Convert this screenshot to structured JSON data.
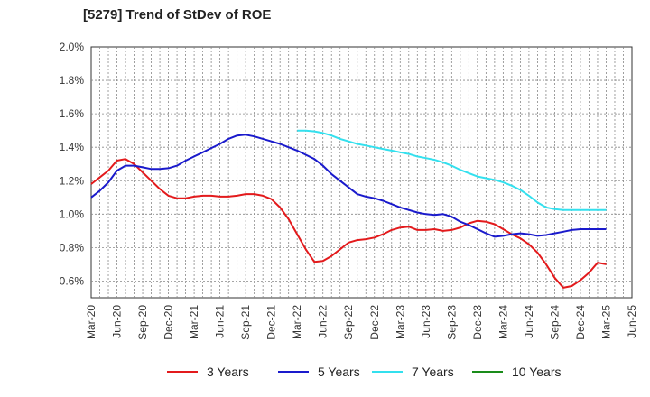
{
  "chart_data": {
    "type": "line",
    "title": "[5279]  Trend of StDev of ROE",
    "xlabel": "",
    "ylabel": "",
    "ylim": [
      0.5,
      2.0
    ],
    "y_ticks": [
      0.6,
      0.8,
      1.0,
      1.2,
      1.4,
      1.6,
      1.8,
      2.0
    ],
    "y_tick_labels": [
      "0.6%",
      "0.8%",
      "1.0%",
      "1.2%",
      "1.4%",
      "1.6%",
      "1.8%",
      "2.0%"
    ],
    "x_tick_labels": [
      "Mar-20",
      "Jun-20",
      "Sep-20",
      "Dec-20",
      "Mar-21",
      "Jun-21",
      "Sep-21",
      "Dec-21",
      "Mar-22",
      "Jun-22",
      "Sep-22",
      "Dec-22",
      "Mar-23",
      "Jun-23",
      "Sep-23",
      "Dec-23",
      "Mar-24",
      "Jun-24",
      "Sep-24",
      "Dec-24",
      "Mar-25",
      "Jun-25"
    ],
    "grid": true,
    "legend_position": "bottom",
    "series": [
      {
        "name": "3 Years",
        "color": "#e31a1c",
        "x": [
          0,
          1,
          2,
          3,
          4,
          5,
          6,
          7,
          8,
          9,
          10,
          11,
          12,
          13,
          14,
          15,
          16,
          17,
          18,
          19,
          20,
          21,
          22,
          23,
          24,
          25,
          26,
          27,
          28,
          29,
          30,
          31,
          32,
          33,
          34,
          35,
          36,
          37,
          38,
          39,
          40,
          41,
          42,
          43,
          44,
          45,
          46,
          47,
          48,
          49,
          50,
          51,
          52,
          53,
          54,
          55,
          56,
          57,
          58,
          59,
          60
        ],
        "values": [
          1.18,
          1.22,
          1.26,
          1.32,
          1.33,
          1.3,
          1.25,
          1.2,
          1.15,
          1.11,
          1.095,
          1.095,
          1.105,
          1.11,
          1.11,
          1.105,
          1.105,
          1.11,
          1.12,
          1.12,
          1.11,
          1.09,
          1.04,
          0.97,
          0.88,
          0.79,
          0.715,
          0.72,
          0.75,
          0.79,
          0.83,
          0.845,
          0.85,
          0.86,
          0.88,
          0.905,
          0.92,
          0.925,
          0.905,
          0.905,
          0.91,
          0.9,
          0.905,
          0.92,
          0.945,
          0.96,
          0.955,
          0.94,
          0.91,
          0.88,
          0.855,
          0.82,
          0.77,
          0.7,
          0.62,
          0.56,
          0.57,
          0.605,
          0.65,
          0.71,
          0.7
        ]
      },
      {
        "name": "5 Years",
        "color": "#1a1acc",
        "x": [
          0,
          1,
          2,
          3,
          4,
          5,
          6,
          7,
          8,
          9,
          10,
          11,
          12,
          13,
          14,
          15,
          16,
          17,
          18,
          19,
          20,
          21,
          22,
          23,
          24,
          25,
          26,
          27,
          28,
          29,
          30,
          31,
          32,
          33,
          34,
          35,
          36,
          37,
          38,
          39,
          40,
          41,
          42,
          43,
          44,
          45,
          46,
          47,
          48,
          49,
          50,
          51,
          52,
          53,
          54,
          55,
          56,
          57,
          58,
          59,
          60
        ],
        "values": [
          1.1,
          1.14,
          1.19,
          1.26,
          1.29,
          1.29,
          1.28,
          1.27,
          1.27,
          1.275,
          1.29,
          1.32,
          1.345,
          1.37,
          1.395,
          1.42,
          1.45,
          1.47,
          1.475,
          1.465,
          1.45,
          1.435,
          1.42,
          1.4,
          1.38,
          1.355,
          1.33,
          1.29,
          1.24,
          1.2,
          1.16,
          1.12,
          1.105,
          1.095,
          1.08,
          1.06,
          1.04,
          1.025,
          1.01,
          1.0,
          0.995,
          1.0,
          0.985,
          0.955,
          0.935,
          0.91,
          0.885,
          0.865,
          0.87,
          0.88,
          0.885,
          0.88,
          0.87,
          0.875,
          0.885,
          0.895,
          0.905,
          0.91,
          0.91,
          0.91,
          0.91
        ]
      },
      {
        "name": "7 Years",
        "color": "#33e0ee",
        "x": [
          24,
          25,
          26,
          27,
          28,
          29,
          30,
          31,
          32,
          33,
          34,
          35,
          36,
          37,
          38,
          39,
          40,
          41,
          42,
          43,
          44,
          45,
          46,
          47,
          48,
          49,
          50,
          51,
          52,
          53,
          54,
          55,
          56,
          57,
          58,
          59,
          60
        ],
        "values": [
          1.5,
          1.5,
          1.495,
          1.485,
          1.47,
          1.45,
          1.435,
          1.42,
          1.41,
          1.4,
          1.39,
          1.38,
          1.37,
          1.36,
          1.345,
          1.335,
          1.325,
          1.31,
          1.29,
          1.265,
          1.245,
          1.225,
          1.215,
          1.205,
          1.19,
          1.17,
          1.145,
          1.11,
          1.07,
          1.04,
          1.03,
          1.025,
          1.025,
          1.025,
          1.025,
          1.025,
          1.025
        ]
      },
      {
        "name": "10 Years",
        "color": "#1a8c1a",
        "x": [],
        "values": []
      }
    ]
  }
}
